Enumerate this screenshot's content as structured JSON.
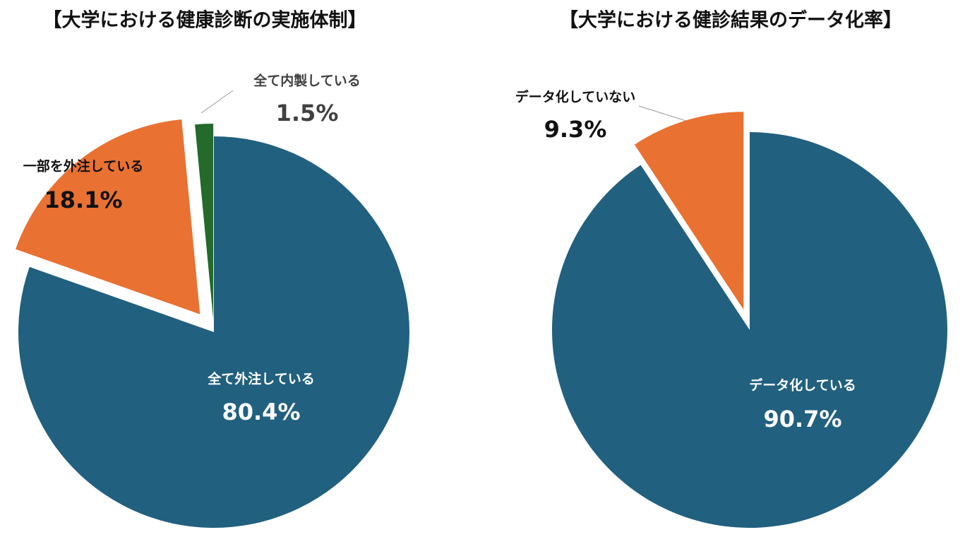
{
  "chart_data": [
    {
      "type": "pie",
      "title": "【大学における健康診断の実施体制】",
      "categories": [
        "全て外注している",
        "一部を外注している",
        "全て内製している"
      ],
      "values": [
        80.4,
        18.1,
        1.5
      ],
      "value_labels": [
        "80.4%",
        "18.1%",
        "1.5%"
      ],
      "colors": [
        "#21607f",
        "#e97132",
        "#236a2b"
      ]
    },
    {
      "type": "pie",
      "title": "【大学における健診結果のデータ化率】",
      "categories": [
        "データ化している",
        "データ化していない"
      ],
      "values": [
        90.7,
        9.3
      ],
      "value_labels": [
        "90.7%",
        "9.3%"
      ],
      "colors": [
        "#21607f",
        "#e97132"
      ]
    }
  ]
}
